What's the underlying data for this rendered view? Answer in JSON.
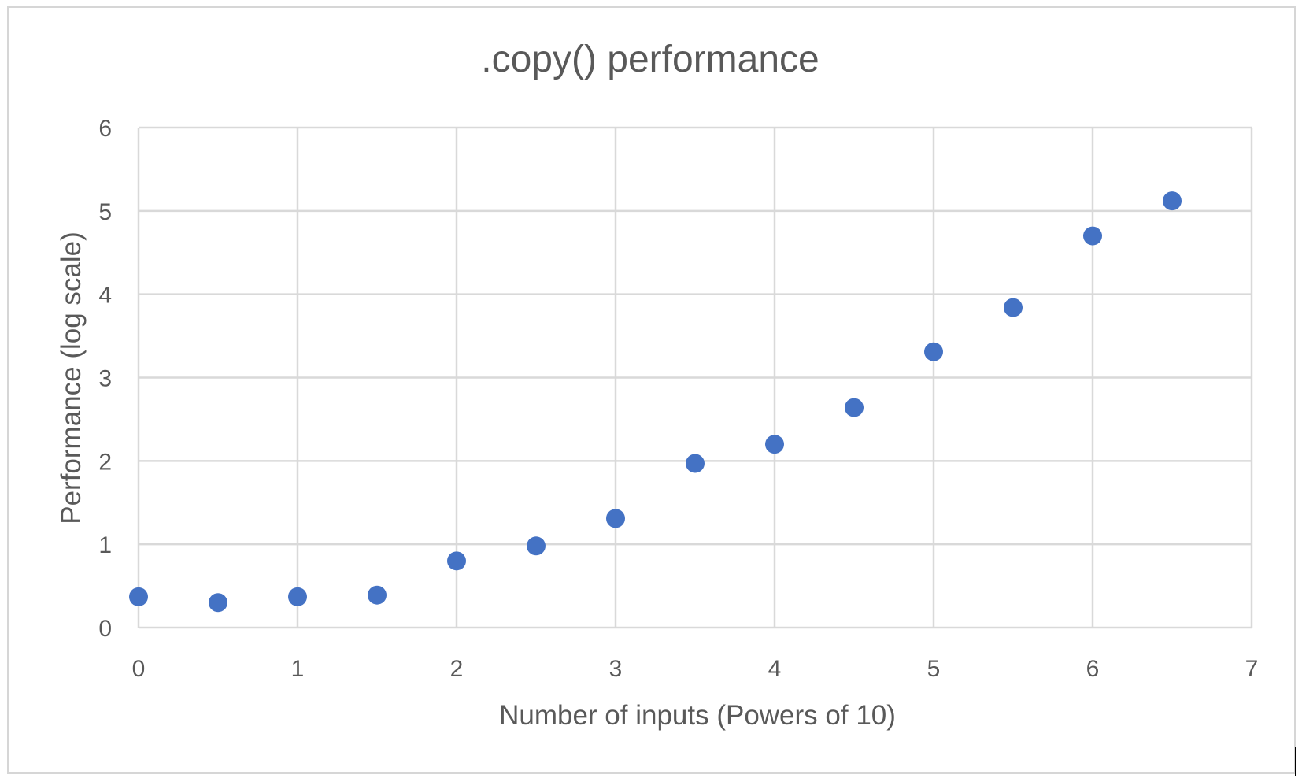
{
  "chart_data": {
    "type": "scatter",
    "title": ".copy() performance",
    "xlabel": "Number of inputs (Powers of 10)",
    "ylabel": "Performance (log scale)",
    "xlim": [
      0,
      7
    ],
    "ylim": [
      0,
      6
    ],
    "x_ticks": [
      "0",
      "1",
      "2",
      "3",
      "4",
      "5",
      "6",
      "7"
    ],
    "y_ticks": [
      "0",
      "1",
      "2",
      "3",
      "4",
      "5",
      "6"
    ],
    "grid": true,
    "legend": "none",
    "marker_color": "#4472C4",
    "series": [
      {
        "points": [
          {
            "x": 0,
            "y": 0.37
          },
          {
            "x": 0.5,
            "y": 0.3
          },
          {
            "x": 1,
            "y": 0.37
          },
          {
            "x": 1.5,
            "y": 0.39
          },
          {
            "x": 2,
            "y": 0.8
          },
          {
            "x": 2.5,
            "y": 0.98
          },
          {
            "x": 3,
            "y": 1.31
          },
          {
            "x": 3.5,
            "y": 1.97
          },
          {
            "x": 4,
            "y": 2.2
          },
          {
            "x": 4.5,
            "y": 2.64
          },
          {
            "x": 5,
            "y": 3.31
          },
          {
            "x": 5.5,
            "y": 3.84
          },
          {
            "x": 6,
            "y": 4.7
          },
          {
            "x": 6.5,
            "y": 5.12
          }
        ]
      }
    ]
  }
}
